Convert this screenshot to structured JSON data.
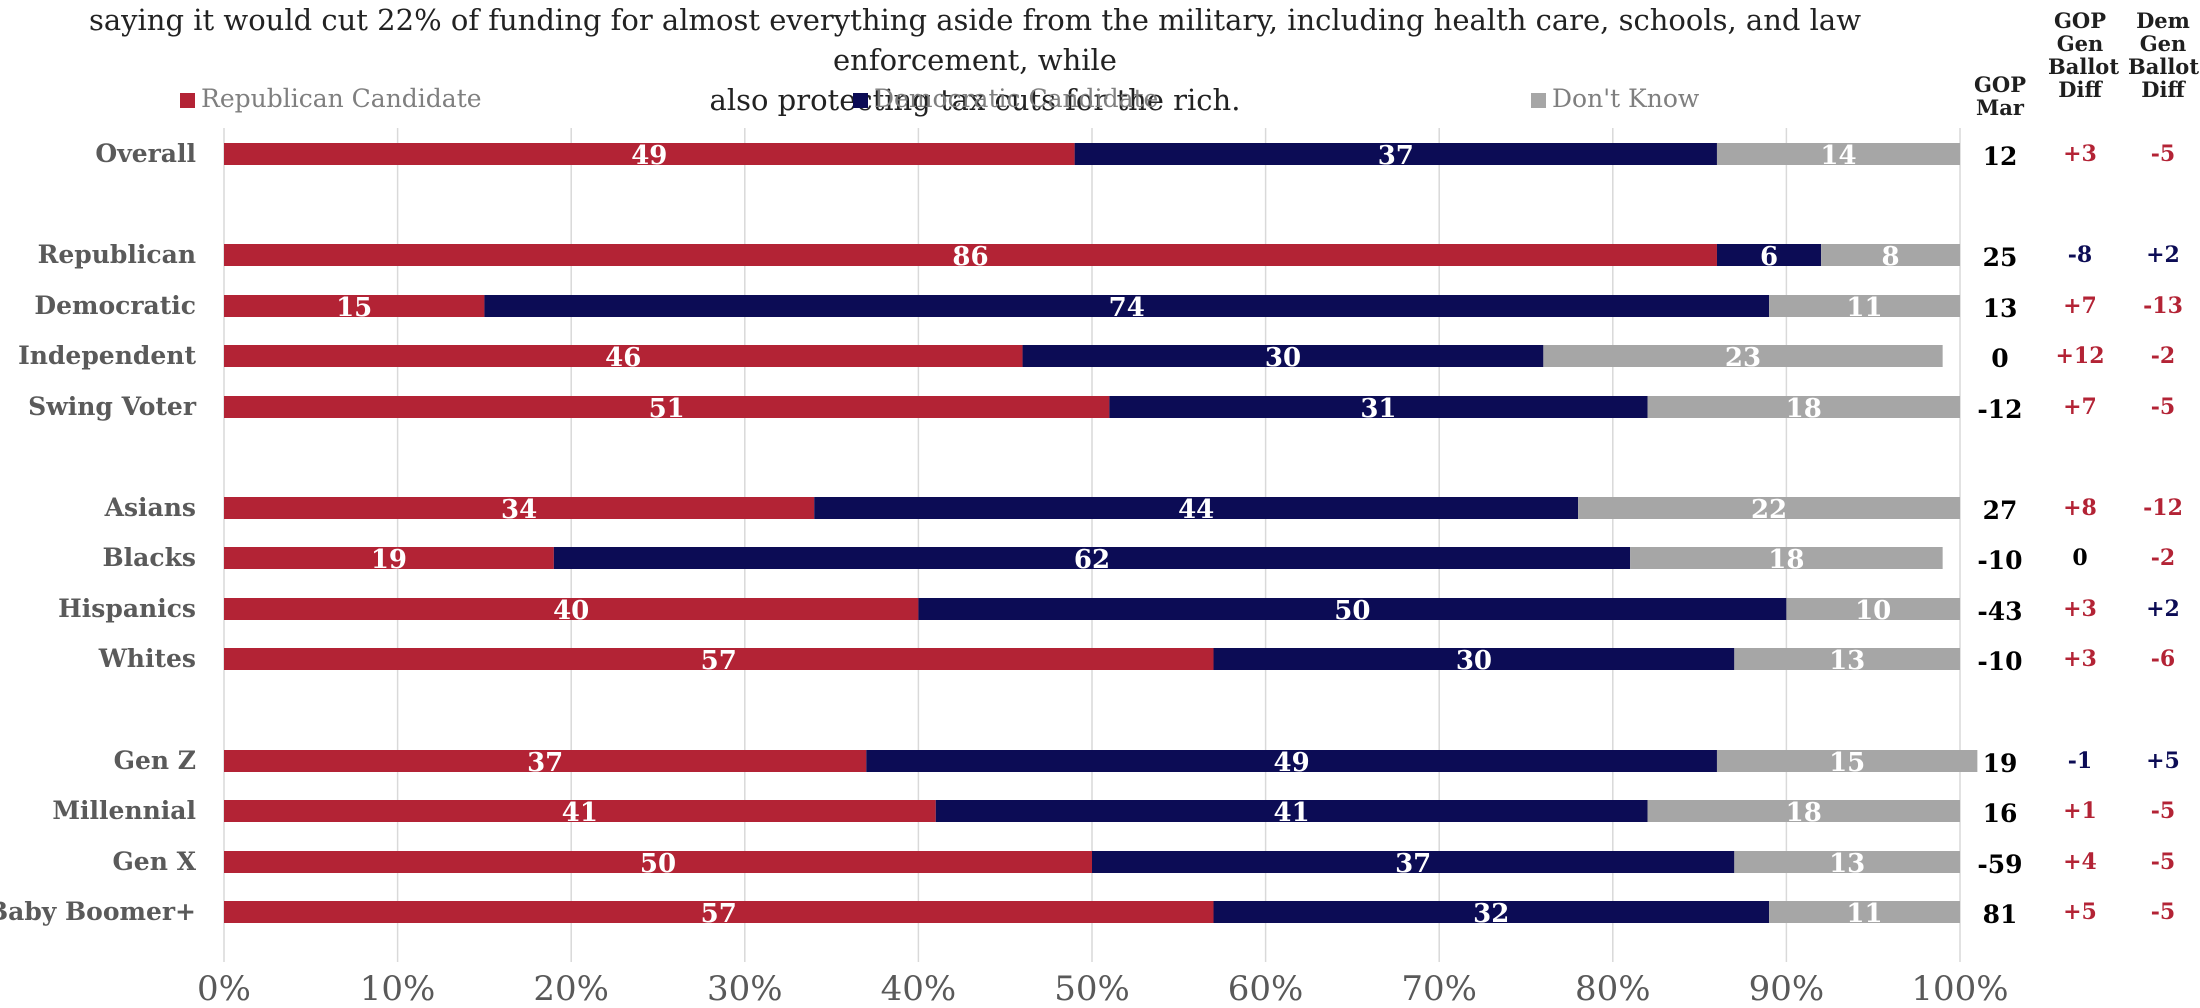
{
  "subtitle": "saying it would cut 22% of funding for almost everything aside from the military, including health care, schools, and law enforcement, while\nalso protecting tax cuts for the rich.",
  "colors": {
    "republican": "#b32335",
    "democratic": "#0c0c55",
    "dont_know": "#a6a6a6",
    "diff_red": "#b32335",
    "diff_blue": "#0c0c55"
  },
  "legend": [
    {
      "label": "Republican Candidate",
      "color": "#b32335"
    },
    {
      "label": "Democratic Candidate",
      "color": "#0c0c55"
    },
    {
      "label": "Don't Know",
      "color": "#a6a6a6"
    }
  ],
  "columns": {
    "gop_mar": "GOP\nMar",
    "gop_gen_ballot_diff": "GOP\nGen\nBallot\nDiff",
    "dem_gen_ballot_diff": "Dem\nGen\nBallot\nDiff"
  },
  "chart_data": {
    "type": "bar",
    "orientation": "horizontal",
    "stacked": true,
    "categories": [
      "Overall",
      "Republican",
      "Democratic",
      "Independent",
      "Swing Voter",
      "Asians",
      "Blacks",
      "Hispanics",
      "Whites",
      "Gen Z",
      "Millennial",
      "Gen X",
      "Baby Boomer+"
    ],
    "series": [
      {
        "name": "Republican Candidate",
        "values": [
          49,
          86,
          15,
          46,
          51,
          34,
          19,
          40,
          57,
          37,
          41,
          50,
          57
        ]
      },
      {
        "name": "Democratic Candidate",
        "values": [
          37,
          6,
          74,
          30,
          31,
          44,
          62,
          50,
          30,
          49,
          41,
          37,
          32
        ]
      },
      {
        "name": "Don't Know",
        "values": [
          14,
          8,
          11,
          23,
          18,
          22,
          18,
          10,
          13,
          15,
          18,
          13,
          11
        ]
      }
    ],
    "xlim": [
      0,
      100
    ],
    "x_ticks": [
      "0%",
      "10%",
      "20%",
      "30%",
      "40%",
      "50%",
      "60%",
      "70%",
      "80%",
      "90%",
      "100%"
    ],
    "grid": true,
    "legend_position": "top",
    "gop_mar": [
      "12",
      "25",
      "13",
      "0",
      "-12",
      "27",
      "-10",
      "-43",
      "-10",
      "19",
      "16",
      "-59",
      "81"
    ],
    "gop_gen_ballot_diff": [
      "+3",
      "-8",
      "+7",
      "+12",
      "+7",
      "+8",
      "0",
      "+3",
      "+3",
      "-1",
      "+1",
      "+4",
      "+5"
    ],
    "dem_gen_ballot_diff": [
      "-5",
      "+2",
      "-13",
      "-2",
      "-5",
      "-12",
      "-2",
      "+2",
      "-6",
      "+5",
      "-5",
      "-5",
      "-5"
    ]
  }
}
